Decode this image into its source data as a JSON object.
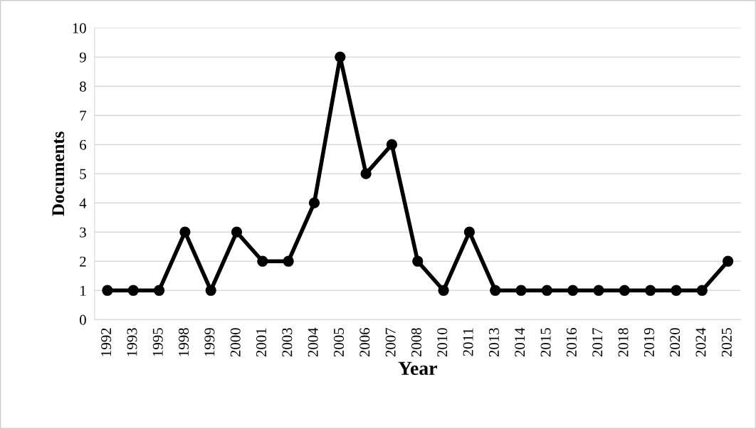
{
  "chart_data": {
    "type": "line",
    "xlabel": "Year",
    "ylabel": "Documents",
    "categories": [
      "1992",
      "1993",
      "1995",
      "1998",
      "1999",
      "2000",
      "2001",
      "2003",
      "2004",
      "2005",
      "2006",
      "2007",
      "2008",
      "2010",
      "2011",
      "2013",
      "2014",
      "2015",
      "2016",
      "2017",
      "2018",
      "2019",
      "2020",
      "2024",
      "2025"
    ],
    "series": [
      {
        "color": "#000000",
        "values": [
          1,
          1,
          1,
          3,
          1,
          3,
          2,
          2,
          4,
          9,
          5,
          6,
          2,
          1,
          3,
          1,
          1,
          1,
          1,
          1,
          1,
          1,
          1,
          1,
          2
        ]
      }
    ],
    "ylim": [
      0,
      10
    ],
    "yticks": [
      0,
      1,
      2,
      3,
      4,
      5,
      6,
      7,
      8,
      9,
      10
    ],
    "grid": "y",
    "marker": "circle",
    "line_style": "solid",
    "legend": false
  }
}
